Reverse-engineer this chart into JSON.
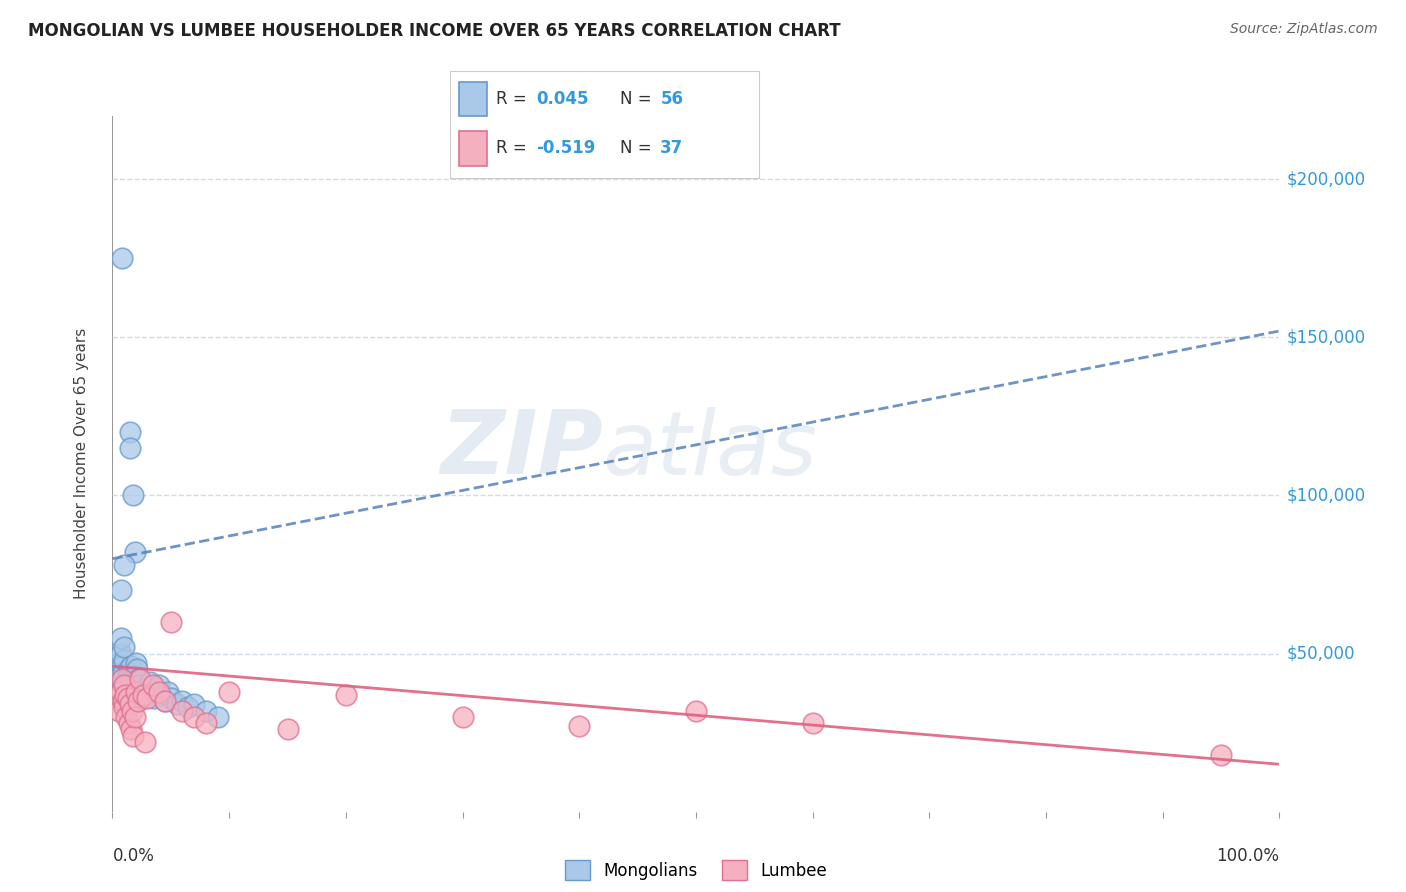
{
  "title": "MONGOLIAN VS LUMBEE HOUSEHOLDER INCOME OVER 65 YEARS CORRELATION CHART",
  "source": "Source: ZipAtlas.com",
  "ylabel": "Householder Income Over 65 years",
  "mongolian_r": 0.045,
  "mongolian_n": 56,
  "lumbee_r": -0.519,
  "lumbee_n": 37,
  "mongolian_color": "#aac8e8",
  "lumbee_color": "#f5b0c0",
  "mongolian_edge_color": "#6699cc",
  "lumbee_edge_color": "#e07090",
  "mongolian_line_color": "#5580bb",
  "lumbee_line_color": "#e06080",
  "background_color": "#ffffff",
  "grid_color": "#c8d8e8",
  "watermark_zip": "ZIP",
  "watermark_atlas": "atlas",
  "ytick_labels": [
    "$50,000",
    "$100,000",
    "$150,000",
    "$200,000"
  ],
  "ytick_values": [
    50000,
    100000,
    150000,
    200000
  ],
  "ylim": [
    0,
    220000
  ],
  "xlim": [
    0.0,
    1.0
  ],
  "right_label_color": "#3399dd",
  "legend_label_color": "#3399dd",
  "mongolian_scatter_x": [
    0.005,
    0.006,
    0.007,
    0.007,
    0.008,
    0.008,
    0.009,
    0.009,
    0.01,
    0.01,
    0.01,
    0.01,
    0.011,
    0.011,
    0.012,
    0.012,
    0.013,
    0.013,
    0.013,
    0.014,
    0.014,
    0.015,
    0.015,
    0.015,
    0.016,
    0.016,
    0.017,
    0.017,
    0.018,
    0.018,
    0.019,
    0.02,
    0.02,
    0.021,
    0.022,
    0.023,
    0.025,
    0.026,
    0.028,
    0.03,
    0.032,
    0.034,
    0.036,
    0.04,
    0.042,
    0.045,
    0.048,
    0.05,
    0.055,
    0.06,
    0.065,
    0.07,
    0.08,
    0.09,
    0.01,
    0.007
  ],
  "mongolian_scatter_y": [
    47000,
    43000,
    50000,
    55000,
    175000,
    46000,
    44000,
    42000,
    48000,
    52000,
    38000,
    36000,
    40000,
    35000,
    41000,
    39000,
    43000,
    37000,
    33000,
    45000,
    34000,
    44000,
    120000,
    115000,
    46000,
    42000,
    38000,
    36000,
    40000,
    100000,
    82000,
    47000,
    43000,
    45000,
    42000,
    40000,
    38000,
    36000,
    37000,
    39000,
    41000,
    38000,
    36000,
    40000,
    37000,
    35000,
    38000,
    36000,
    34000,
    35000,
    33000,
    34000,
    32000,
    30000,
    78000,
    70000
  ],
  "lumbee_scatter_x": [
    0.005,
    0.006,
    0.007,
    0.008,
    0.009,
    0.01,
    0.01,
    0.011,
    0.012,
    0.013,
    0.014,
    0.015,
    0.016,
    0.017,
    0.018,
    0.019,
    0.02,
    0.022,
    0.024,
    0.026,
    0.028,
    0.03,
    0.035,
    0.04,
    0.045,
    0.05,
    0.06,
    0.07,
    0.08,
    0.1,
    0.15,
    0.2,
    0.3,
    0.4,
    0.5,
    0.6,
    0.95
  ],
  "lumbee_scatter_y": [
    36000,
    32000,
    38000,
    42000,
    35000,
    40000,
    33000,
    37000,
    30000,
    36000,
    28000,
    34000,
    26000,
    32000,
    24000,
    30000,
    38000,
    35000,
    42000,
    37000,
    22000,
    36000,
    40000,
    38000,
    35000,
    60000,
    32000,
    30000,
    28000,
    38000,
    26000,
    37000,
    30000,
    27000,
    32000,
    28000,
    18000
  ],
  "mongo_line_x0": 0.0,
  "mongo_line_x1": 1.0,
  "mongo_line_y0": 80000,
  "mongo_line_y1": 152000,
  "lumbee_line_x0": 0.0,
  "lumbee_line_x1": 1.0,
  "lumbee_line_y0": 46000,
  "lumbee_line_y1": 15000
}
